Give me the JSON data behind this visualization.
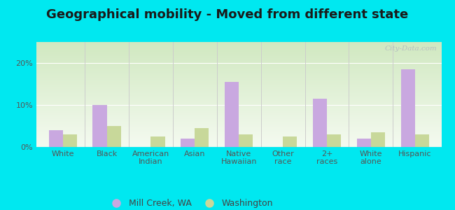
{
  "title": "Geographical mobility - Moved from different state",
  "categories": [
    "White",
    "Black",
    "American\nIndian",
    "Asian",
    "Native\nHawaiian",
    "Other\nrace",
    "2+\nraces",
    "White\nalone",
    "Hispanic"
  ],
  "mill_creek": [
    4.0,
    10.0,
    0.0,
    2.0,
    15.5,
    0.0,
    11.5,
    2.0,
    18.5
  ],
  "washington": [
    3.0,
    5.0,
    2.5,
    4.5,
    3.0,
    2.5,
    3.0,
    3.5,
    3.0
  ],
  "mill_creek_color": "#c9a8e0",
  "washington_color": "#c8d89a",
  "outer_background": "#00e8f0",
  "grad_top": "#d0e8c0",
  "grad_bottom": "#f4faf0",
  "ylim": [
    0,
    25
  ],
  "yticks": [
    0,
    10,
    20
  ],
  "ytick_labels": [
    "0%",
    "10%",
    "20%"
  ],
  "bar_width": 0.32,
  "legend_mill_creek": "Mill Creek, WA",
  "legend_washington": "Washington",
  "title_fontsize": 13,
  "tick_fontsize": 8,
  "legend_fontsize": 9,
  "separator_color": "#cccccc",
  "grid_color": "#dddddd"
}
